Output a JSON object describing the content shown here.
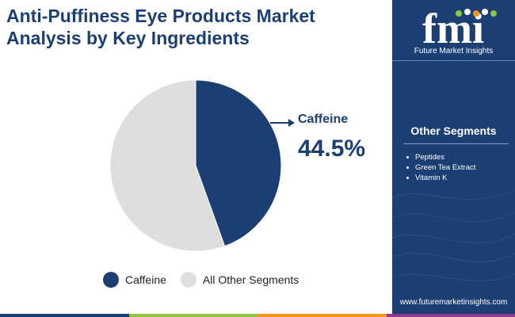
{
  "header": {
    "title_line1": "Anti-Puffiness Eye Products Market",
    "title_line2": "Analysis by Key Ingredients"
  },
  "chart_data": {
    "type": "pie",
    "categories": [
      "Caffeine",
      "All Other Segments"
    ],
    "values": [
      44.5,
      55.5
    ],
    "colors": [
      "#1c3f73",
      "#dedede"
    ],
    "start_angle_deg": 0,
    "direction": "clockwise",
    "highlight": {
      "label": "Caffeine",
      "value_text": "44.5%"
    },
    "legend_position": "bottom"
  },
  "legend": {
    "items": [
      {
        "label": "Caffeine",
        "color": "#1c3f73"
      },
      {
        "label": "All Other Segments",
        "color": "#dedede"
      }
    ]
  },
  "side_panel": {
    "logo_letters": "fmi",
    "logo_text": "Future Market Insights",
    "other_segments_heading": "Other Segments",
    "other_segments": [
      "Peptides",
      "Green Tea Extract",
      "Vitamin K"
    ],
    "website": "www.futuremarketinsights.com",
    "background_color": "#1c3f73"
  },
  "bottom_bar_colors": [
    "#1c3f73",
    "#8dc63f",
    "#f7941d",
    "#8e3a8e"
  ]
}
